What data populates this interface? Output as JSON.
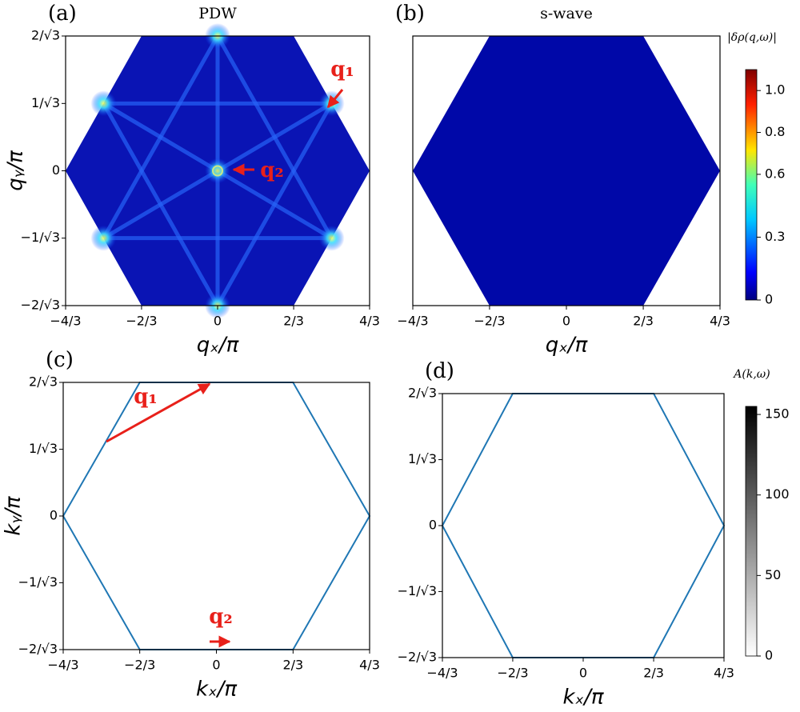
{
  "chart_data": [
    {
      "type": "heatmap",
      "label": "(a)",
      "title": "PDW",
      "xlabel": "qₓ/π",
      "ylabel": "qᵧ/π",
      "color": "#0a14b4",
      "x": [
        -1.333,
        -0.667,
        0.667,
        1.333,
        0.667,
        -0.667,
        -1.333
      ],
      "values": [
        0,
        1.155,
        1.155,
        0,
        -1.155,
        -1.155,
        0
      ],
      "xlim": [
        -1.333,
        1.333
      ],
      "ylim": [
        -1.155,
        1.155
      ],
      "xticks": [
        {
          "value": -1.333,
          "label": "−4/3"
        },
        {
          "value": -0.667,
          "label": "−2/3"
        },
        0,
        {
          "value": 0.667,
          "label": "2/3"
        },
        {
          "value": 1.333,
          "label": "4/3"
        }
      ],
      "yticks": [
        {
          "value": -1.155,
          "label": "−2/√3"
        },
        {
          "value": -0.577,
          "label": "−1/√3"
        },
        0,
        {
          "value": 0.577,
          "label": "1/√3"
        },
        {
          "value": 1.155,
          "label": "2/√3"
        }
      ],
      "annotations": [
        "q₁",
        "q₂"
      ]
    },
    {
      "type": "heatmap",
      "label": "(b)",
      "title": "s-wave",
      "xlabel": "qₓ/π",
      "color": "#0008a8",
      "x": [
        -1.333,
        -0.667,
        0.667,
        1.333,
        0.667,
        -0.667,
        -1.333
      ],
      "values": [
        0,
        1.155,
        1.155,
        0,
        -1.155,
        -1.155,
        0
      ],
      "xlim": [
        -1.333,
        1.333
      ],
      "ylim": [
        -1.155,
        1.155
      ],
      "xticks": [
        {
          "value": -1.333,
          "label": "−4/3"
        },
        {
          "value": -0.667,
          "label": "−2/3"
        },
        0,
        {
          "value": 0.667,
          "label": "2/3"
        },
        {
          "value": 1.333,
          "label": "4/3"
        }
      ],
      "colorbar": {
        "label": "|δρ(q,ω)|",
        "lim": [
          0,
          1.1
        ],
        "ticks": [
          0,
          0.3,
          0.6,
          0.8,
          {
            "value": 1,
            "label": "1.0"
          }
        ],
        "colormap": "jet"
      }
    },
    {
      "type": "line",
      "label": "(c)",
      "xlabel": "kₓ/π",
      "ylabel": "kᵧ/π",
      "color": "#1f77b4",
      "x": [
        -1.333,
        -0.667,
        0.667,
        1.333,
        0.667,
        -0.667,
        -1.333
      ],
      "values": [
        0,
        1.155,
        1.155,
        0,
        -1.155,
        -1.155,
        0
      ],
      "xlim": [
        -1.333,
        1.333
      ],
      "ylim": [
        -1.155,
        1.155
      ],
      "xticks": [
        {
          "value": -1.333,
          "label": "−4/3"
        },
        {
          "value": -0.667,
          "label": "−2/3"
        },
        0,
        {
          "value": 0.667,
          "label": "2/3"
        },
        {
          "value": 1.333,
          "label": "4/3"
        }
      ],
      "yticks": [
        {
          "value": -1.155,
          "label": "−2/√3"
        },
        {
          "value": -0.577,
          "label": "−1/√3"
        },
        0,
        {
          "value": 0.577,
          "label": "1/√3"
        },
        {
          "value": 1.155,
          "label": "2/√3"
        }
      ],
      "annotations": [
        "q₁",
        "q₂"
      ]
    },
    {
      "type": "line",
      "label": "(d)",
      "xlabel": "kₓ/π",
      "color": "#1f77b4",
      "x": [
        -1.333,
        -0.667,
        0.667,
        1.333,
        0.667,
        -0.667,
        -1.333
      ],
      "values": [
        0,
        1.155,
        1.155,
        0,
        -1.155,
        -1.155,
        0
      ],
      "xlim": [
        -1.333,
        1.333
      ],
      "ylim": [
        -1.155,
        1.155
      ],
      "xticks": [
        {
          "value": -1.333,
          "label": "−4/3"
        },
        {
          "value": -0.667,
          "label": "−2/3"
        },
        0,
        {
          "value": 0.667,
          "label": "2/3"
        },
        {
          "value": 1.333,
          "label": "4/3"
        }
      ],
      "yticks": [
        {
          "value": -1.155,
          "label": "−2/√3"
        },
        {
          "value": -0.577,
          "label": "−1/√3"
        },
        0,
        {
          "value": 0.577,
          "label": "1/√3"
        },
        {
          "value": 1.155,
          "label": "2/√3"
        }
      ],
      "colorbar": {
        "label": "A(k,ω)",
        "lim": [
          0,
          155
        ],
        "ticks": [
          0,
          50,
          100,
          150
        ],
        "colormap": "greys"
      }
    }
  ]
}
